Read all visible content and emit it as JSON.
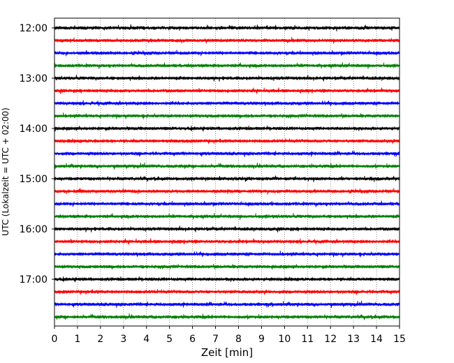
{
  "chart_data": {
    "type": "line",
    "subtype": "helicorder",
    "xlabel": "Zeit  [min]",
    "ylabel": "UTC (Lokalzeit = UTC + 02:00)",
    "xlim": [
      0,
      15
    ],
    "x_ticks": [
      "0",
      "1",
      "2",
      "3",
      "4",
      "5",
      "6",
      "7",
      "8",
      "9",
      "10",
      "11",
      "12",
      "13",
      "14",
      "15"
    ],
    "y_tick_labels": [
      "12:00",
      "13:00",
      "14:00",
      "15:00",
      "16:00",
      "17:00"
    ],
    "rows": [
      "12:00",
      "12:15",
      "12:30",
      "12:45",
      "13:00",
      "13:15",
      "13:30",
      "13:45",
      "14:00",
      "14:15",
      "14:30",
      "14:45",
      "15:00",
      "15:15",
      "15:30",
      "15:45",
      "16:00",
      "16:15",
      "16:30",
      "16:45",
      "17:00",
      "17:15",
      "17:30",
      "17:45"
    ],
    "row_colors": [
      "#000000",
      "#ff0000",
      "#0000ff",
      "#008000"
    ],
    "grid": {
      "x": true,
      "style": "dotted"
    }
  }
}
